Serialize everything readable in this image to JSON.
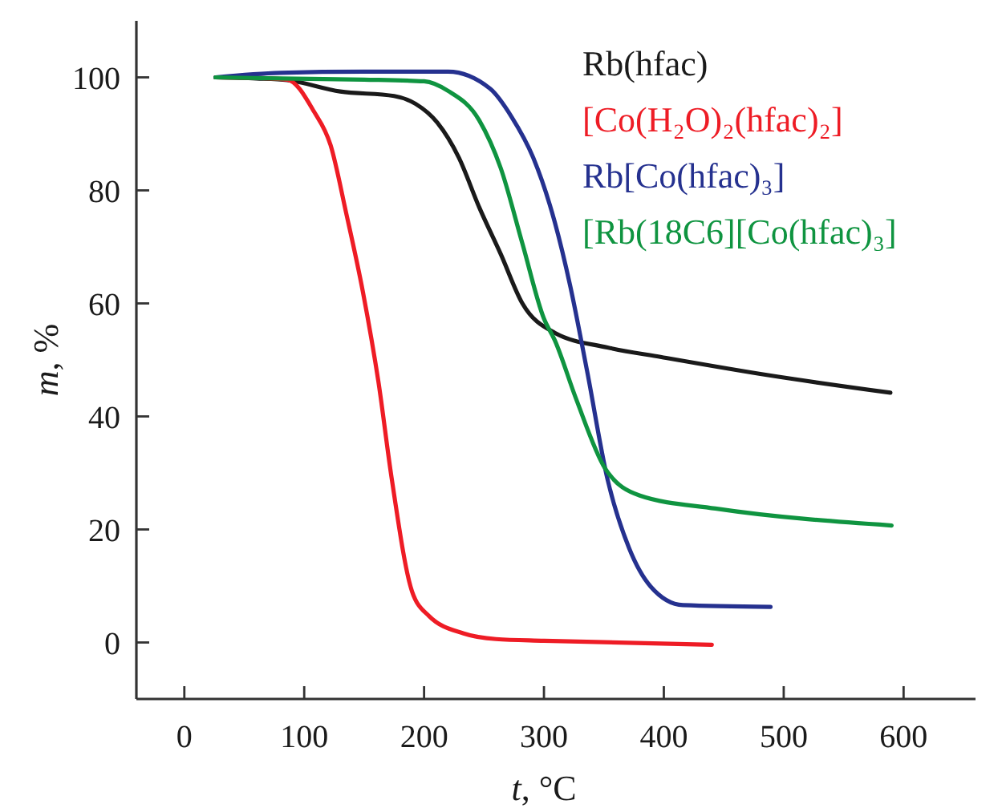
{
  "chart_data": {
    "type": "line",
    "xlabel": "t, °C",
    "ylabel": "m, %",
    "xlim": [
      -40,
      660
    ],
    "ylim": [
      -10,
      110
    ],
    "xticks": [
      0,
      100,
      200,
      300,
      400,
      500,
      600
    ],
    "yticks": [
      0,
      20,
      40,
      60,
      80,
      100
    ],
    "grid": false,
    "legend": "top right",
    "marker": "none",
    "line_style": "solid",
    "series": [
      {
        "name": "Rb(hfac)",
        "color": "#1a1a1a",
        "x": [
          26,
          60,
          86,
          130,
          175,
          193,
          211,
          229,
          246,
          264,
          282,
          309,
          353,
          398,
          487,
          589
        ],
        "values": [
          100,
          99.8,
          99.5,
          97.5,
          96.7,
          95.3,
          92,
          85.8,
          77,
          68.7,
          60,
          54.8,
          52.2,
          50.5,
          47.3,
          44.2
        ]
      },
      {
        "name": "[Co(H₂O)₂(hfac)₂]",
        "color": "#ee1c25",
        "x": [
          26,
          60,
          86,
          108,
          122,
          135,
          149,
          162,
          173,
          190,
          204,
          233,
          260,
          300,
          440
        ],
        "values": [
          100,
          99.9,
          99.6,
          94,
          88,
          76,
          62,
          46,
          29,
          9,
          4.7,
          1.6,
          0.6,
          0.3,
          -0.4
        ]
      },
      {
        "name": "Rb[Co(hfac)₃]",
        "color": "#25318f",
        "x": [
          26,
          80,
          150,
          220,
          255,
          273,
          291,
          309,
          322,
          336,
          353,
          371,
          389,
          416,
          489
        ],
        "values": [
          100,
          100.8,
          101,
          101,
          98,
          93,
          85.8,
          74.4,
          63,
          48,
          28.9,
          16.7,
          9.9,
          6.6,
          6.3
        ]
      },
      {
        "name": "[Rb(18C6][Co(hfac)₃]",
        "color": "#0f9440",
        "x": [
          26,
          80,
          150,
          200,
          220,
          246,
          264,
          282,
          300,
          309,
          327,
          351,
          380,
          443,
          590
        ],
        "values": [
          100,
          99.8,
          99.6,
          99.3,
          97.6,
          92.4,
          83.9,
          70.6,
          57.3,
          53.5,
          43,
          30.8,
          26,
          23.7,
          20.7
        ]
      }
    ]
  }
}
